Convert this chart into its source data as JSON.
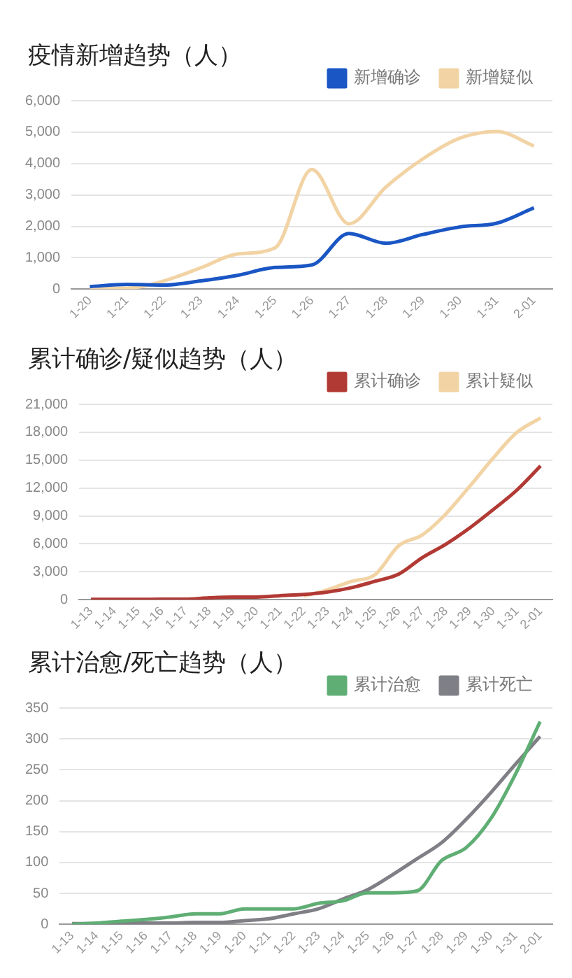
{
  "chart_data": [
    {
      "type": "line",
      "title": "疫情新增趋势（人）",
      "categories": [
        "1-20",
        "1-21",
        "1-22",
        "1-23",
        "1-24",
        "1-25",
        "1-26",
        "1-27",
        "1-28",
        "1-29",
        "1-30",
        "1-31",
        "2-01"
      ],
      "series": [
        {
          "name": "新增确诊",
          "color": "#1a56c4",
          "values": [
            80,
            150,
            130,
            260,
            440,
            690,
            770,
            1770,
            1460,
            1740,
            1980,
            2100,
            2590
          ]
        },
        {
          "name": "新增疑似",
          "color": "#f2d3a4",
          "values": [
            30,
            30,
            260,
            680,
            1120,
            1310,
            3810,
            2080,
            3250,
            4150,
            4810,
            5020,
            4560
          ]
        }
      ],
      "ylim": [
        0,
        6000
      ],
      "yticks": [
        0,
        {
          "value": 1000,
          "label": "1,000"
        },
        {
          "value": 2000,
          "label": "2,000"
        },
        {
          "value": 3000,
          "label": "3,000"
        },
        {
          "value": 4000,
          "label": "4,000"
        },
        {
          "value": 5000,
          "label": "5,000"
        },
        {
          "value": 6000,
          "label": "6,000"
        }
      ],
      "grid": "y",
      "legend": "top right",
      "marker": "none",
      "line_style": "solid"
    },
    {
      "type": "line",
      "title": "累计确诊/疑似趋势（人）",
      "categories": [
        "1-13",
        "1-14",
        "1-15",
        "1-16",
        "1-17",
        "1-18",
        "1-19",
        "1-20",
        "1-21",
        "1-22",
        "1-23",
        "1-24",
        "1-25",
        "1-26",
        "1-27",
        "1-28",
        "1-29",
        "1-30",
        "1-31",
        "2-01"
      ],
      "series": [
        {
          "name": "累计确诊",
          "color": "#b23a35",
          "values": [
            40,
            40,
            40,
            50,
            60,
            200,
            280,
            290,
            440,
            570,
            830,
            1290,
            1980,
            2740,
            4520,
            5970,
            7710,
            9690,
            11790,
            14380
          ]
        },
        {
          "name": "累计疑似",
          "color": "#f2d3a4",
          "values": [
            null,
            null,
            null,
            null,
            null,
            null,
            null,
            null,
            null,
            390,
            1070,
            1970,
            2680,
            5790,
            6970,
            9240,
            12170,
            15240,
            17990,
            19540
          ]
        }
      ],
      "ylim": [
        0,
        21000
      ],
      "yticks": [
        0,
        {
          "value": 3000,
          "label": "3,000"
        },
        {
          "value": 6000,
          "label": "6,000"
        },
        {
          "value": 9000,
          "label": "9,000"
        },
        {
          "value": 12000,
          "label": "12,000"
        },
        {
          "value": 15000,
          "label": "15,000"
        },
        {
          "value": 18000,
          "label": "18,000"
        },
        {
          "value": 21000,
          "label": "21,000"
        }
      ],
      "grid": "y",
      "legend": "top right",
      "marker": "none",
      "line_style": "solid"
    },
    {
      "type": "line",
      "title": "累计治愈/死亡趋势（人）",
      "categories": [
        "1-13",
        "1-14",
        "1-15",
        "1-16",
        "1-17",
        "1-18",
        "1-19",
        "1-20",
        "1-21",
        "1-22",
        "1-23",
        "1-24",
        "1-25",
        "1-26",
        "1-27",
        "1-28",
        "1-29",
        "1-30",
        "1-31",
        "2-01"
      ],
      "series": [
        {
          "name": "累计治愈",
          "color": "#5fae74",
          "values": [
            0,
            2,
            5,
            8,
            12,
            17,
            17,
            25,
            25,
            25,
            34,
            38,
            51,
            51,
            54,
            103,
            124,
            171,
            243,
            328
          ]
        },
        {
          "name": "累计死亡",
          "color": "#7f7f86",
          "values": [
            1,
            1,
            2,
            2,
            2,
            3,
            3,
            6,
            9,
            17,
            25,
            41,
            56,
            80,
            106,
            132,
            170,
            213,
            259,
            304
          ]
        }
      ],
      "ylim": [
        0,
        350
      ],
      "yticks": [
        0,
        50,
        100,
        150,
        200,
        250,
        300,
        350
      ],
      "grid": "y",
      "legend": "top right",
      "marker": "none",
      "line_style": "solid"
    }
  ]
}
